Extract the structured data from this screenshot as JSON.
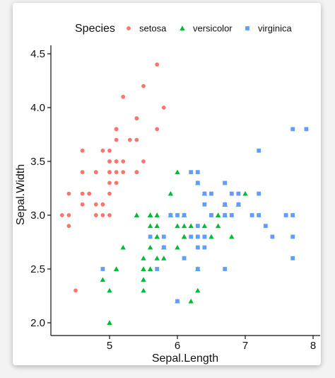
{
  "chart_data": {
    "type": "scatter",
    "title": "",
    "xlabel": "Sepal.Length",
    "ylabel": "Sepal.Width",
    "xlim": [
      4.2,
      8.05
    ],
    "ylim": [
      1.88,
      4.52
    ],
    "xticks": [
      5,
      6,
      7,
      8
    ],
    "yticks": [
      2.0,
      2.5,
      3.0,
      3.5,
      4.0,
      4.5
    ],
    "xtick_labels": [
      "5",
      "6",
      "7",
      "8"
    ],
    "ytick_labels": [
      "2.0",
      "2.5",
      "3.0",
      "3.5",
      "4.0",
      "4.5"
    ],
    "grid": false,
    "legend": {
      "title": "Species",
      "position": "top"
    },
    "series": [
      {
        "name": "setosa",
        "color": "#F8766D",
        "shape": "circle",
        "points": [
          [
            5.1,
            3.5
          ],
          [
            4.9,
            3.0
          ],
          [
            4.7,
            3.2
          ],
          [
            4.6,
            3.1
          ],
          [
            5.0,
            3.6
          ],
          [
            5.4,
            3.9
          ],
          [
            4.6,
            3.4
          ],
          [
            5.0,
            3.4
          ],
          [
            4.4,
            2.9
          ],
          [
            4.9,
            3.1
          ],
          [
            5.4,
            3.7
          ],
          [
            4.8,
            3.4
          ],
          [
            4.8,
            3.0
          ],
          [
            4.3,
            3.0
          ],
          [
            5.8,
            4.0
          ],
          [
            5.7,
            4.4
          ],
          [
            5.4,
            3.9
          ],
          [
            5.1,
            3.5
          ],
          [
            5.7,
            3.8
          ],
          [
            5.1,
            3.8
          ],
          [
            5.4,
            3.4
          ],
          [
            5.1,
            3.7
          ],
          [
            4.6,
            3.6
          ],
          [
            5.1,
            3.3
          ],
          [
            4.8,
            3.4
          ],
          [
            5.0,
            3.0
          ],
          [
            5.0,
            3.4
          ],
          [
            5.2,
            3.5
          ],
          [
            5.2,
            3.4
          ],
          [
            4.7,
            3.2
          ],
          [
            4.8,
            3.1
          ],
          [
            5.4,
            3.4
          ],
          [
            5.2,
            4.1
          ],
          [
            5.5,
            4.2
          ],
          [
            4.9,
            3.1
          ],
          [
            5.0,
            3.2
          ],
          [
            5.5,
            3.5
          ],
          [
            4.9,
            3.6
          ],
          [
            4.4,
            3.0
          ],
          [
            5.1,
            3.4
          ],
          [
            5.0,
            3.5
          ],
          [
            4.5,
            2.3
          ],
          [
            4.4,
            3.2
          ],
          [
            5.0,
            3.5
          ],
          [
            5.1,
            3.8
          ],
          [
            4.8,
            3.0
          ],
          [
            5.1,
            3.8
          ],
          [
            4.6,
            3.2
          ],
          [
            5.3,
            3.7
          ],
          [
            5.0,
            3.3
          ]
        ]
      },
      {
        "name": "versicolor",
        "color": "#00BA38",
        "shape": "triangle",
        "points": [
          [
            7.0,
            3.2
          ],
          [
            6.4,
            3.2
          ],
          [
            6.9,
            3.1
          ],
          [
            5.5,
            2.3
          ],
          [
            6.5,
            2.8
          ],
          [
            5.7,
            2.8
          ],
          [
            6.3,
            3.3
          ],
          [
            4.9,
            2.4
          ],
          [
            6.6,
            2.9
          ],
          [
            5.2,
            2.7
          ],
          [
            5.0,
            2.0
          ],
          [
            5.9,
            3.0
          ],
          [
            6.0,
            2.2
          ],
          [
            6.1,
            2.9
          ],
          [
            5.6,
            2.9
          ],
          [
            6.7,
            3.1
          ],
          [
            5.6,
            3.0
          ],
          [
            5.8,
            2.7
          ],
          [
            6.2,
            2.2
          ],
          [
            5.6,
            2.5
          ],
          [
            5.9,
            3.2
          ],
          [
            6.1,
            2.8
          ],
          [
            6.3,
            2.5
          ],
          [
            6.1,
            2.8
          ],
          [
            6.4,
            2.9
          ],
          [
            6.6,
            3.0
          ],
          [
            6.8,
            2.8
          ],
          [
            6.7,
            3.0
          ],
          [
            6.0,
            2.9
          ],
          [
            5.7,
            2.6
          ],
          [
            5.5,
            2.4
          ],
          [
            5.5,
            2.4
          ],
          [
            5.8,
            2.7
          ],
          [
            6.0,
            2.7
          ],
          [
            5.4,
            3.0
          ],
          [
            6.0,
            3.4
          ],
          [
            6.7,
            3.1
          ],
          [
            6.3,
            2.3
          ],
          [
            5.6,
            3.0
          ],
          [
            5.5,
            2.5
          ],
          [
            5.5,
            2.6
          ],
          [
            6.1,
            3.0
          ],
          [
            5.8,
            2.6
          ],
          [
            5.0,
            2.3
          ],
          [
            5.6,
            2.7
          ],
          [
            5.7,
            3.0
          ],
          [
            5.7,
            2.9
          ],
          [
            6.2,
            2.9
          ],
          [
            5.1,
            2.5
          ],
          [
            5.7,
            2.8
          ]
        ]
      },
      {
        "name": "virginica",
        "color": "#619CFF",
        "shape": "square",
        "points": [
          [
            6.3,
            3.3
          ],
          [
            5.8,
            2.7
          ],
          [
            7.1,
            3.0
          ],
          [
            6.3,
            2.9
          ],
          [
            6.5,
            3.0
          ],
          [
            7.6,
            3.0
          ],
          [
            4.9,
            2.5
          ],
          [
            7.3,
            2.9
          ],
          [
            6.7,
            2.5
          ],
          [
            7.2,
            3.6
          ],
          [
            6.5,
            3.2
          ],
          [
            6.4,
            2.7
          ],
          [
            6.8,
            3.0
          ],
          [
            5.7,
            2.5
          ],
          [
            5.8,
            2.8
          ],
          [
            6.4,
            3.2
          ],
          [
            6.5,
            3.0
          ],
          [
            7.7,
            3.8
          ],
          [
            7.7,
            2.6
          ],
          [
            6.0,
            2.2
          ],
          [
            6.9,
            3.2
          ],
          [
            5.6,
            2.8
          ],
          [
            7.7,
            2.8
          ],
          [
            6.3,
            2.7
          ],
          [
            6.7,
            3.3
          ],
          [
            7.2,
            3.2
          ],
          [
            6.2,
            2.8
          ],
          [
            6.1,
            3.0
          ],
          [
            6.4,
            2.8
          ],
          [
            7.2,
            3.0
          ],
          [
            7.4,
            2.8
          ],
          [
            7.9,
            3.8
          ],
          [
            6.4,
            2.8
          ],
          [
            6.3,
            2.8
          ],
          [
            6.1,
            2.6
          ],
          [
            7.7,
            3.0
          ],
          [
            6.3,
            3.4
          ],
          [
            6.4,
            3.1
          ],
          [
            6.0,
            3.0
          ],
          [
            6.9,
            3.1
          ],
          [
            6.7,
            3.1
          ],
          [
            6.9,
            3.1
          ],
          [
            5.8,
            2.7
          ],
          [
            6.8,
            3.2
          ],
          [
            6.7,
            3.3
          ],
          [
            6.7,
            3.0
          ],
          [
            6.3,
            2.5
          ],
          [
            6.5,
            3.0
          ],
          [
            6.2,
            3.4
          ],
          [
            5.9,
            3.0
          ]
        ]
      }
    ]
  }
}
